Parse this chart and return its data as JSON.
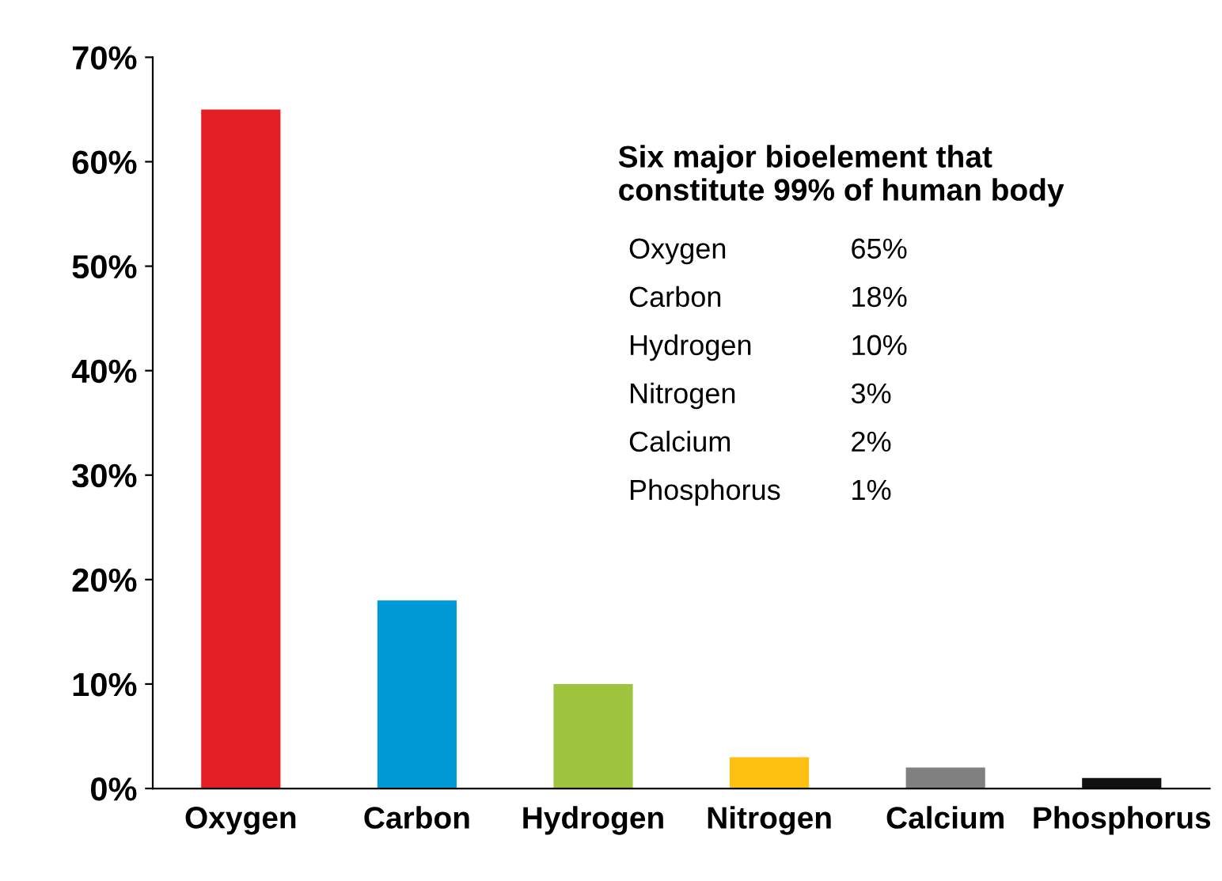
{
  "chart_data": {
    "type": "bar",
    "title": "Six major bioelement that\nconstitute 99% of human body",
    "categories": [
      "Oxygen",
      "Carbon",
      "Hydrogen",
      "Nitrogen",
      "Calcium",
      "Phosphorus"
    ],
    "values": [
      65,
      18,
      10,
      3,
      2,
      1
    ],
    "annotations": [
      "Oxygen",
      "65%",
      "Carbon",
      "18%",
      "Hydrogen",
      "10%",
      "Nitrogen",
      "3%",
      "Calcium",
      "2%",
      "Phosphorus",
      "1%"
    ],
    "colors": [
      "#e31e24",
      "#0099d8",
      "#9dc43c",
      "#fdc010",
      "#808080",
      "#111111"
    ],
    "ylim": [
      0,
      70
    ],
    "yticks": [
      {
        "value": 0,
        "label": "0%"
      },
      {
        "value": 10,
        "label": "10%"
      },
      {
        "value": 20,
        "label": "20%"
      },
      {
        "value": 30,
        "label": "30%"
      },
      {
        "value": 40,
        "label": "40%"
      },
      {
        "value": 50,
        "label": "50%"
      },
      {
        "value": 60,
        "label": "60%"
      },
      {
        "value": 70,
        "label": "70%"
      }
    ],
    "grid": false,
    "legend": false
  }
}
